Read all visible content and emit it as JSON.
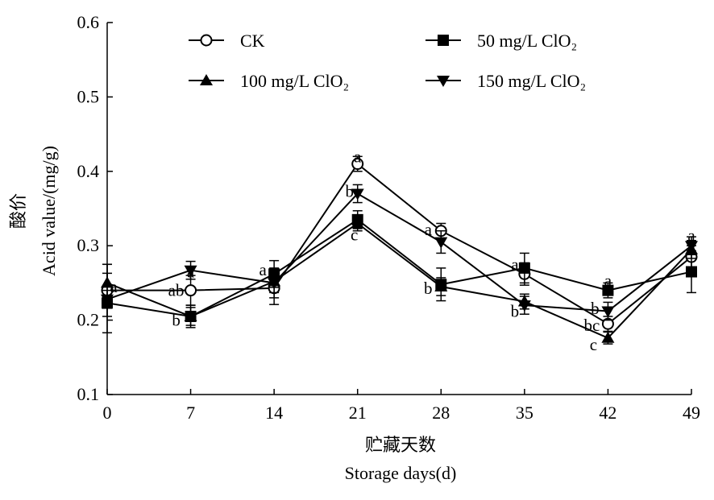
{
  "chart_data": {
    "type": "line",
    "ylabel_cn": "酸价",
    "ylabel": "Acid value/(mg/g)",
    "xlabel_cn": "贮藏天数",
    "xlabel": "Storage days(d)",
    "x": [
      0,
      7,
      14,
      21,
      28,
      35,
      42,
      49
    ],
    "x_tick_labels": [
      "0",
      "7",
      "14",
      "21",
      "28",
      "35",
      "42",
      "49"
    ],
    "xlim": [
      0,
      49
    ],
    "ylim": [
      0.1,
      0.6
    ],
    "y_ticks": [
      0.1,
      0.2,
      0.3,
      0.4,
      0.5,
      0.6
    ],
    "y_tick_labels": [
      "0.1",
      "0.2",
      "0.3",
      "0.4",
      "0.5",
      "0.6"
    ],
    "grid": false,
    "legend_position": "top",
    "series": [
      {
        "name": "CK",
        "marker": "open-circle",
        "values": [
          0.24,
          0.24,
          0.243,
          0.41,
          0.32,
          0.262,
          0.195,
          0.285
        ],
        "errors": [
          0.035,
          0.02,
          0.022,
          0.01,
          0.01,
          0.015,
          0.01,
          0.015
        ]
      },
      {
        "name": "50 mg/L ClO₂",
        "marker": "filled-square",
        "values": [
          0.223,
          0.205,
          0.262,
          0.335,
          0.248,
          0.27,
          0.24,
          0.265
        ],
        "errors": [
          0.04,
          0.015,
          0.018,
          0.012,
          0.022,
          0.02,
          0.01,
          0.028
        ]
      },
      {
        "name": "100 mg/L ClO₂",
        "marker": "filled-triangle-up",
        "values": [
          0.25,
          0.205,
          0.252,
          0.33,
          0.245,
          0.225,
          0.176,
          0.295
        ],
        "errors": [
          0.025,
          0.012,
          0.015,
          0.01,
          0.012,
          0.01,
          0.008,
          0.012
        ]
      },
      {
        "name": "150 mg/L ClO₂",
        "marker": "filled-triangle-down",
        "values": [
          0.228,
          0.267,
          0.25,
          0.37,
          0.305,
          0.22,
          0.212,
          0.3
        ],
        "errors": [
          0.012,
          0.012,
          0.02,
          0.012,
          0.015,
          0.012,
          0.012,
          0.012
        ]
      }
    ],
    "significance_labels": [
      {
        "x": 0,
        "y": 0.245,
        "text": "a"
      },
      {
        "x": 7,
        "y": 0.265,
        "text": "a"
      },
      {
        "x": 7,
        "y": 0.24,
        "text": "ab"
      },
      {
        "x": 7,
        "y": 0.2,
        "text": "b"
      },
      {
        "x": 14,
        "y": 0.268,
        "text": "a"
      },
      {
        "x": 21,
        "y": 0.42,
        "text": "a"
      },
      {
        "x": 21,
        "y": 0.373,
        "text": "b"
      },
      {
        "x": 21,
        "y": 0.315,
        "text": "c"
      },
      {
        "x": 28,
        "y": 0.322,
        "text": "a"
      },
      {
        "x": 28,
        "y": 0.243,
        "text": "b"
      },
      {
        "x": 35,
        "y": 0.275,
        "text": "a"
      },
      {
        "x": 35,
        "y": 0.212,
        "text": "b"
      },
      {
        "x": 42,
        "y": 0.253,
        "text": "a"
      },
      {
        "x": 42,
        "y": 0.216,
        "text": "b"
      },
      {
        "x": 42,
        "y": 0.193,
        "text": "bc"
      },
      {
        "x": 42,
        "y": 0.167,
        "text": "c"
      },
      {
        "x": 49,
        "y": 0.314,
        "text": "a"
      }
    ]
  }
}
